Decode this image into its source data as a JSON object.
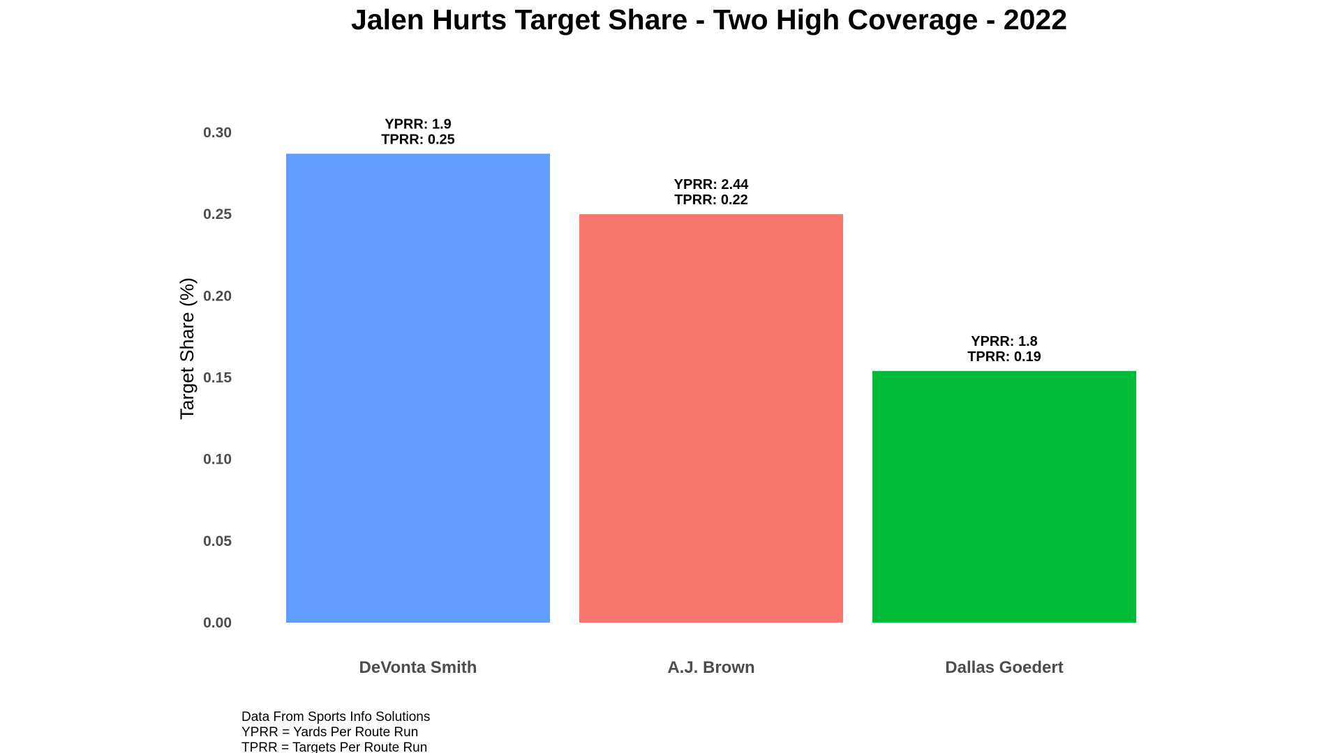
{
  "chart_data": {
    "type": "bar",
    "title": "Jalen Hurts Target Share - Two High Coverage - 2022",
    "xlabel": "",
    "ylabel": "Target Share (%)",
    "ylim": [
      0,
      0.3
    ],
    "yticks": [
      "0.00",
      "0.05",
      "0.10",
      "0.15",
      "0.20",
      "0.25",
      "0.30"
    ],
    "categories": [
      "DeVonta Smith",
      "A.J. Brown",
      "Dallas Goedert"
    ],
    "values": [
      0.287,
      0.25,
      0.154
    ],
    "colors": [
      "#619CFF",
      "#F8766D",
      "#00BA38"
    ],
    "bar_labels": [
      [
        "YPRR: 1.9",
        "TPRR: 0.25"
      ],
      [
        "YPRR: 2.44",
        "TPRR: 0.22"
      ],
      [
        "YPRR: 1.8",
        "TPRR: 0.19"
      ]
    ],
    "grid": false,
    "legend": "none",
    "caption": [
      "Data From Sports Info Solutions",
      "YPRR = Yards Per Route Run",
      "TPRR = Targets Per Route Run"
    ]
  }
}
